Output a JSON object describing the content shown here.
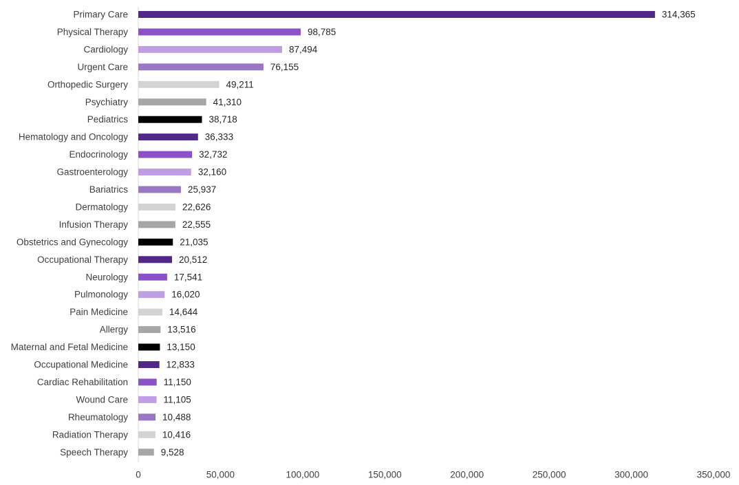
{
  "chart_data": {
    "type": "bar",
    "orientation": "horizontal",
    "title": "",
    "xlabel": "",
    "ylabel": "",
    "xlim": [
      0,
      350000
    ],
    "xticks": [
      0,
      50000,
      100000,
      150000,
      200000,
      250000,
      300000,
      350000
    ],
    "xtick_labels": [
      "0",
      "50,000",
      "100,000",
      "150,000",
      "200,000",
      "250,000",
      "300,000",
      "350,000"
    ],
    "grid": false,
    "legend": "none",
    "categories": [
      "Primary Care",
      "Physical Therapy",
      "Cardiology",
      "Urgent Care",
      "Orthopedic Surgery",
      "Psychiatry",
      "Pediatrics",
      "Hematology and Oncology",
      "Endocrinology",
      "Gastroenterology",
      "Bariatrics",
      "Dermatology",
      "Infusion Therapy",
      "Obstetrics and Gynecology",
      "Occupational Therapy",
      "Neurology",
      "Pulmonology",
      "Pain Medicine",
      "Allergy",
      "Maternal and Fetal Medicine",
      "Occupational Medicine",
      "Cardiac Rehabilitation",
      "Wound Care",
      "Rheumatology",
      "Radiation Therapy",
      "Speech Therapy"
    ],
    "values": [
      314365,
      98785,
      87494,
      76155,
      49211,
      41310,
      38718,
      36333,
      32732,
      32160,
      25937,
      22626,
      22555,
      21035,
      20512,
      17541,
      16020,
      14644,
      13516,
      13150,
      12833,
      11150,
      11105,
      10488,
      10416,
      9528
    ],
    "value_labels": [
      "314,365",
      "98,785",
      "87,494",
      "76,155",
      "49,211",
      "41,310",
      "38,718",
      "36,333",
      "32,732",
      "32,160",
      "25,937",
      "22,626",
      "22,555",
      "21,035",
      "20,512",
      "17,541",
      "16,020",
      "14,644",
      "13,516",
      "13,150",
      "12,833",
      "11,150",
      "11,105",
      "10,488",
      "10,416",
      "9,528"
    ],
    "colors": [
      "#512888",
      "#8a52c6",
      "#c09ee6",
      "#9977c5",
      "#d3d3d3",
      "#a6a6a6",
      "#000000",
      "#512888",
      "#8a52c6",
      "#c09ee6",
      "#9977c5",
      "#d3d3d3",
      "#a6a6a6",
      "#000000",
      "#512888",
      "#8a52c6",
      "#c09ee6",
      "#d3d3d3",
      "#a6a6a6",
      "#000000",
      "#512888",
      "#8a52c6",
      "#c09ee6",
      "#9977c5",
      "#d3d3d3",
      "#a6a6a6"
    ]
  }
}
